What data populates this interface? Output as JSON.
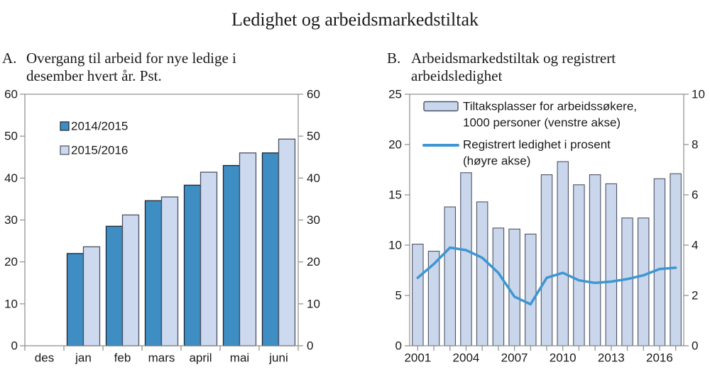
{
  "figure": {
    "title": "Ledighet og arbeidsmarkedstiltak"
  },
  "panels": [
    {
      "label": "A.",
      "title_lines": [
        "Overgang til arbeid for nye ledige i",
        "desember hvert år. Pst."
      ]
    },
    {
      "label": "B.",
      "title_lines": [
        "Arbeidsmarkedstiltak og registrert",
        "arbeidsledighet"
      ]
    }
  ],
  "colors": {
    "frame": "#8c8c8c",
    "text": "#1a1a1a"
  },
  "chart_data": [
    {
      "type": "bar",
      "panel": "A",
      "title": "Overgang til arbeid for nye ledige i desember hvert år. Pst.",
      "categories": [
        "des",
        "jan",
        "feb",
        "mars",
        "april",
        "mai",
        "juni"
      ],
      "series": [
        {
          "name": "2014/2015",
          "color": "#3e8ec4",
          "border": "#1c2430",
          "values": [
            null,
            22,
            28.5,
            34.6,
            38.3,
            43,
            46
          ]
        },
        {
          "name": "2015/2016",
          "color": "#cdd9ee",
          "border": "#4a5162",
          "values": [
            null,
            23.6,
            31.2,
            35.5,
            41.4,
            46,
            49.3
          ]
        }
      ],
      "ylim": [
        0,
        60
      ],
      "yticks": [
        0,
        10,
        20,
        30,
        40,
        50,
        60
      ],
      "mirrored_y_axis": true,
      "grid": false,
      "legend_position": "upper left"
    },
    {
      "type": "bar+line",
      "panel": "B",
      "title": "Arbeidsmarkedstiltak og registrert arbeidsledighet",
      "x": [
        2001,
        2002,
        2003,
        2004,
        2005,
        2006,
        2007,
        2008,
        2009,
        2010,
        2011,
        2012,
        2013,
        2014,
        2015,
        2016,
        2017
      ],
      "bar_series": {
        "name": "Tiltaksplasser for arbeidssøkere, 1000 personer (venstre akse)",
        "legend_lines": [
          "Tiltaksplasser for arbeidssøkere,",
          "1000 personer (venstre akse)"
        ],
        "axis": "left",
        "color": "#c9d6ec",
        "border": "#4d5464",
        "values": [
          10.1,
          9.4,
          13.8,
          17.2,
          14.3,
          11.7,
          11.6,
          11.1,
          17,
          18.3,
          16,
          17,
          16.1,
          12.7,
          12.7,
          16.6,
          17.1
        ]
      },
      "line_series": {
        "name": "Registrert ledighet i prosent (høyre akse)",
        "legend_lines": [
          "Registrert ledighet i prosent",
          "(høyre akse)"
        ],
        "axis": "right",
        "color": "#3d96d2",
        "values": [
          2.7,
          3.25,
          3.9,
          3.8,
          3.5,
          2.9,
          1.95,
          1.65,
          2.7,
          2.9,
          2.6,
          2.5,
          2.55,
          2.65,
          2.8,
          3.05,
          3.1
        ]
      },
      "left_ylim": [
        0,
        25
      ],
      "left_yticks": [
        0,
        5,
        10,
        15,
        20,
        25
      ],
      "right_ylim": [
        0,
        10
      ],
      "right_yticks": [
        0,
        2,
        4,
        6,
        8,
        10
      ],
      "xtick_labels": [
        2001,
        2004,
        2007,
        2010,
        2013,
        2016
      ],
      "grid": false,
      "legend_position": "upper left"
    }
  ]
}
